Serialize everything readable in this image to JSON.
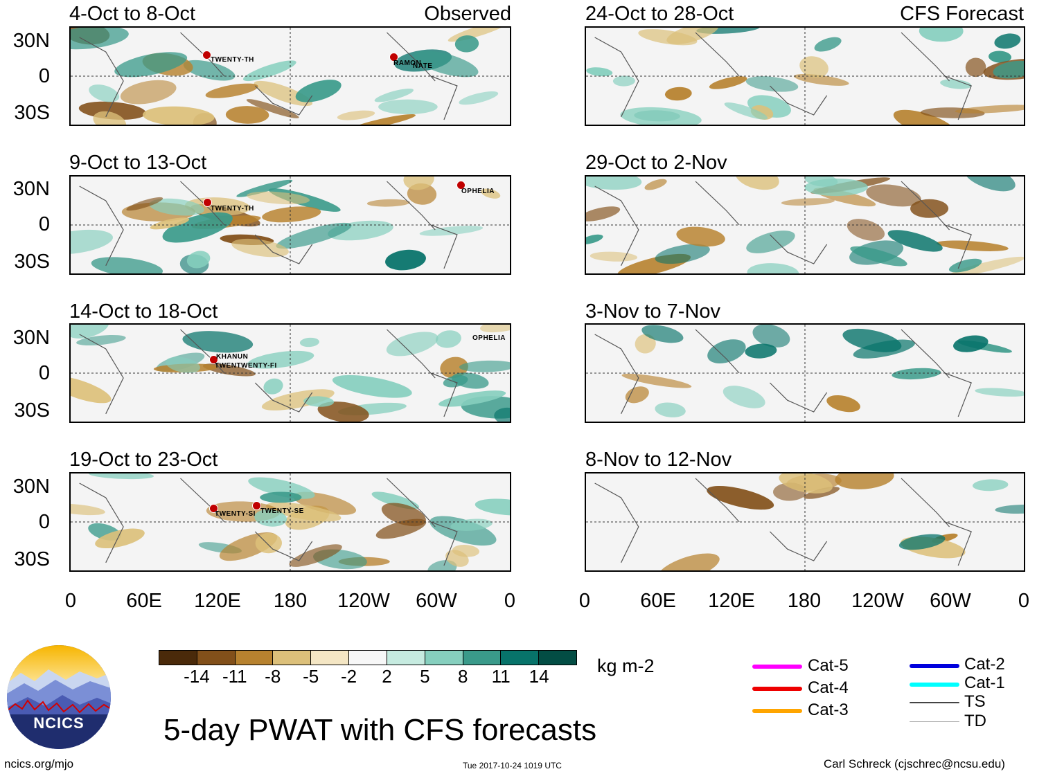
{
  "header": {
    "observed_label": "Observed",
    "forecast_label": "CFS Forecast"
  },
  "panels_left": [
    {
      "title": "4-Oct to 8-Oct"
    },
    {
      "title": "9-Oct to 13-Oct"
    },
    {
      "title": "14-Oct to 18-Oct"
    },
    {
      "title": "19-Oct to 23-Oct"
    }
  ],
  "panels_right": [
    {
      "title": "24-Oct to 28-Oct"
    },
    {
      "title": "29-Oct to 2-Nov"
    },
    {
      "title": "3-Nov to 7-Nov"
    },
    {
      "title": "8-Nov to 12-Nov"
    }
  ],
  "lat_labels": [
    "30N",
    "0",
    "30S"
  ],
  "lon_labels": [
    "0",
    "60E",
    "120E",
    "180",
    "120W",
    "60W",
    "0"
  ],
  "storms": {
    "p1": [
      "TWENTY-TH",
      "RAMON",
      "NATE"
    ],
    "p2": [
      "TWENTY-TH",
      "OPHELIA"
    ],
    "p3": [
      "KHANUN",
      "TWENTWENTY-FI",
      "OPHELIA"
    ],
    "p4": [
      "TWENTY-SI",
      "TWENTY-SE"
    ]
  },
  "colorbar": {
    "ticks": [
      "-14",
      "-11",
      "-8",
      "-5",
      "-2",
      "2",
      "5",
      "8",
      "11",
      "14"
    ],
    "colors": [
      "#4a2a0a",
      "#82501a",
      "#b7822f",
      "#dcc07a",
      "#f4e6c4",
      "#f7f7f7",
      "#c6ebe0",
      "#86cfbe",
      "#3a9a8a",
      "#07736a",
      "#034d44"
    ],
    "units": "kg m-2"
  },
  "title": "5-day PWAT with CFS forecasts",
  "legend": [
    {
      "label": "Cat-5",
      "color": "#ff00ff"
    },
    {
      "label": "Cat-4",
      "color": "#ee0000"
    },
    {
      "label": "Cat-3",
      "color": "#ffa500"
    },
    {
      "label": "Cat-2",
      "color": "#0000dd"
    },
    {
      "label": "Cat-1",
      "color": "#00ffff"
    },
    {
      "label": "TS",
      "color": "#444444"
    },
    {
      "label": "TD",
      "color": "#aaaaaa"
    }
  ],
  "logo": {
    "text": "NCICS"
  },
  "footer": {
    "url": "ncics.org/mjo",
    "timestamp": "Tue 2017-10-24 1019 UTC",
    "author": "Carl Schreck (cjschrec@ncsu.edu)"
  }
}
